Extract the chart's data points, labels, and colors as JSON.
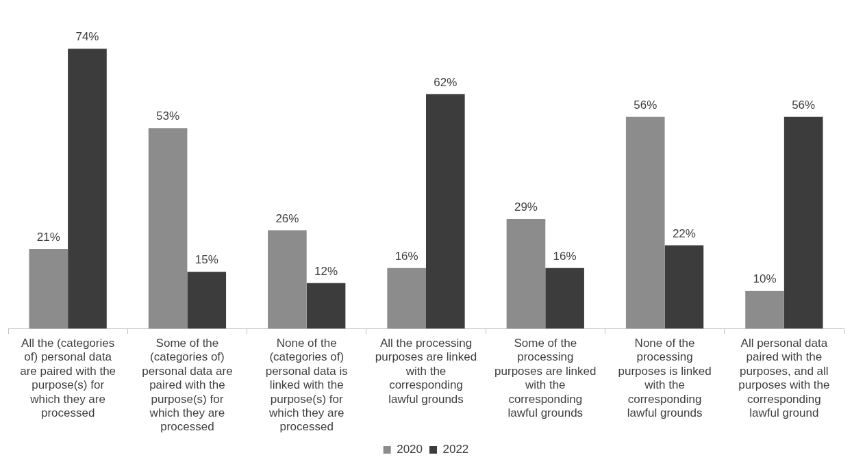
{
  "chart_data": {
    "type": "bar",
    "categories": [
      "All the (categories of) personal data are paired with the purpose(s) for which they are processed",
      "Some of the (categories of) personal data are paired with the purpose(s) for which they are processed",
      "None of the (categories of) personal data is linked with the purpose(s) for which they are processed",
      "All the processing purposes are linked with the corresponding lawful grounds",
      "Some of the processing purposes are linked with the corresponding lawful grounds",
      "None of the processing purposes is linked with the corresponding lawful grounds",
      "All personal data paired with the purposes, and all purposes with the corresponding lawful ground"
    ],
    "series": [
      {
        "name": "2020",
        "color": "#8c8c8c",
        "values": [
          21,
          53,
          26,
          16,
          29,
          56,
          10
        ],
        "value_labels": [
          "21%",
          "53%",
          "26%",
          "16%",
          "29%",
          "56%",
          "10%"
        ]
      },
      {
        "name": "2022",
        "color": "#3c3c3c",
        "values": [
          74,
          15,
          12,
          62,
          16,
          22,
          56
        ],
        "value_labels": [
          "74%",
          "15%",
          "12%",
          "62%",
          "16%",
          "22%",
          "56%"
        ]
      }
    ],
    "legend": "bottom",
    "grid": false
  }
}
